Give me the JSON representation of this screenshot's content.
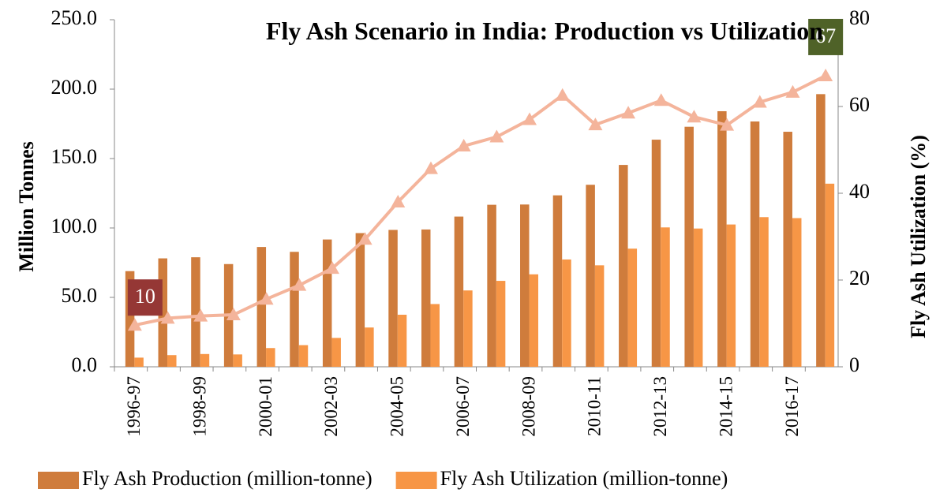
{
  "chart_data": {
    "type": "bar",
    "title": "Fly Ash Scenario in India: Production vs Utilization",
    "y_label": "Million Tonnes",
    "y2_label": "Fly Ash Utilization (%)",
    "categories": [
      "1996-97",
      null,
      "1998-99",
      null,
      "2000-01",
      null,
      "2002-03",
      null,
      "2004-05",
      null,
      "2006-07",
      null,
      "2008-09",
      null,
      "2010-11",
      null,
      "2012-13",
      null,
      "2014-15",
      null,
      "2016-17",
      null
    ],
    "series": [
      {
        "name": "Fly Ash Production (million-tonne)",
        "type": "bar",
        "color": "#cf7c3c",
        "values": [
          68.9,
          78.1,
          78.9,
          74.0,
          86.3,
          82.8,
          91.7,
          96.3,
          98.6,
          98.9,
          108.2,
          116.7,
          116.9,
          123.5,
          131.1,
          145.4,
          163.6,
          172.9,
          184.1,
          176.7,
          169.3,
          196.4
        ]
      },
      {
        "name": "Fly Ash Utilization (million-tonne)",
        "type": "bar",
        "color": "#f79646",
        "values": [
          6.6,
          8.4,
          9.2,
          8.9,
          13.5,
          15.6,
          20.8,
          28.3,
          37.5,
          45.2,
          55.0,
          61.9,
          66.6,
          77.3,
          73.1,
          85.1,
          100.4,
          99.6,
          102.5,
          107.8,
          107.1,
          131.9
        ]
      },
      {
        "type": "line",
        "axis": "y2",
        "color": "#f4b49b",
        "values": [
          9.6,
          11.2,
          11.7,
          12.0,
          15.6,
          18.8,
          22.7,
          29.4,
          38.0,
          45.7,
          50.9,
          53.0,
          57.0,
          62.6,
          55.8,
          58.5,
          61.4,
          57.6,
          55.7,
          61.0,
          63.3,
          67.1
        ],
        "value_labels": [
          "10",
          null,
          null,
          null,
          null,
          null,
          null,
          null,
          null,
          null,
          null,
          null,
          null,
          null,
          null,
          null,
          null,
          null,
          null,
          null,
          null,
          "67"
        ],
        "label_colors": [
          "#953735",
          null,
          null,
          null,
          null,
          null,
          null,
          null,
          null,
          null,
          null,
          null,
          null,
          null,
          null,
          null,
          null,
          null,
          null,
          null,
          null,
          "#4f6228"
        ]
      }
    ],
    "ylim": [
      0,
      250
    ],
    "yticks": [
      {
        "value": 0,
        "label": "0.0"
      },
      {
        "value": 50,
        "label": "50.0"
      },
      {
        "value": 100,
        "label": "100.0"
      },
      {
        "value": 150,
        "label": "150.0"
      },
      {
        "value": 200,
        "label": "200.0"
      },
      {
        "value": 250,
        "label": "250.0"
      }
    ],
    "y2lim": [
      0,
      80
    ],
    "y2ticks": [
      0,
      20,
      40,
      60,
      80
    ],
    "grid": false
  }
}
